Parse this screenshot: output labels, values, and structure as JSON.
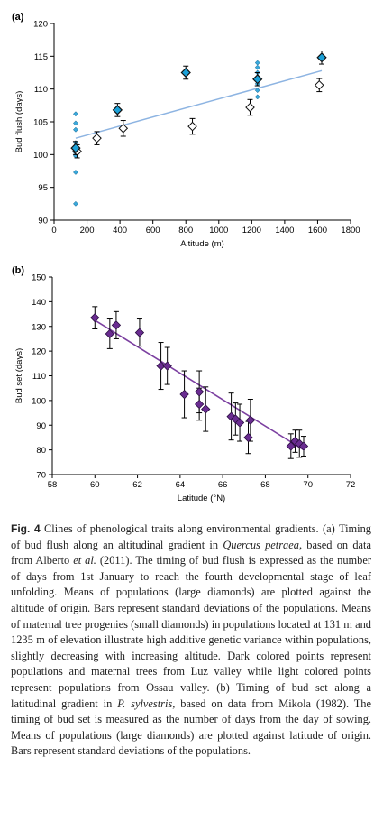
{
  "chart_data": [
    {
      "type": "scatter",
      "panel_label": "(a)",
      "xlabel": "Altitude (m)",
      "ylabel": "Bud flush (days)",
      "xlim": [
        0,
        1800
      ],
      "ylim": [
        90,
        120
      ],
      "xticks": [
        0,
        200,
        400,
        600,
        800,
        1000,
        1200,
        1400,
        1600,
        1800
      ],
      "yticks": [
        90,
        95,
        100,
        105,
        110,
        115,
        120
      ],
      "grid": false,
      "legend": "none",
      "colors": {
        "dark": "#1ba1d8",
        "light": "#ffffff",
        "edge": "#111111",
        "trend": "#8db4e2",
        "small": "#3aa9dc"
      },
      "populations_dark": [
        {
          "x": 131,
          "y": 101.0,
          "sd": 1.0
        },
        {
          "x": 385,
          "y": 106.8,
          "sd": 1.0
        },
        {
          "x": 800,
          "y": 112.5,
          "sd": 1.0
        },
        {
          "x": 1235,
          "y": 111.5,
          "sd": 1.0
        },
        {
          "x": 1625,
          "y": 114.8,
          "sd": 1.0
        }
      ],
      "populations_light": [
        {
          "x": 140,
          "y": 100.5,
          "sd": 1.0
        },
        {
          "x": 260,
          "y": 102.5,
          "sd": 1.0
        },
        {
          "x": 420,
          "y": 104.0,
          "sd": 1.2
        },
        {
          "x": 840,
          "y": 104.3,
          "sd": 1.2
        },
        {
          "x": 1190,
          "y": 107.2,
          "sd": 1.2
        },
        {
          "x": 1610,
          "y": 110.6,
          "sd": 1.0
        }
      ],
      "progenies": [
        {
          "x": 131,
          "y": 92.5
        },
        {
          "x": 131,
          "y": 97.3
        },
        {
          "x": 131,
          "y": 99.8
        },
        {
          "x": 131,
          "y": 100.3
        },
        {
          "x": 131,
          "y": 100.8
        },
        {
          "x": 131,
          "y": 101.8
        },
        {
          "x": 131,
          "y": 103.8
        },
        {
          "x": 131,
          "y": 104.8
        },
        {
          "x": 131,
          "y": 106.2
        },
        {
          "x": 1235,
          "y": 108.8
        },
        {
          "x": 1235,
          "y": 109.8
        },
        {
          "x": 1235,
          "y": 110.8
        },
        {
          "x": 1235,
          "y": 111.8
        },
        {
          "x": 1235,
          "y": 112.5
        },
        {
          "x": 1235,
          "y": 113.3
        },
        {
          "x": 1235,
          "y": 114.0
        }
      ],
      "trendline": {
        "x": [
          131,
          1625
        ],
        "y": [
          102.5,
          112.8
        ]
      }
    },
    {
      "type": "scatter",
      "panel_label": "(b)",
      "xlabel": "Latitude (°N)",
      "ylabel": "Bud set (days)",
      "xlim": [
        58,
        72
      ],
      "ylim": [
        70,
        150
      ],
      "xticks": [
        58,
        60,
        62,
        64,
        66,
        68,
        70,
        72
      ],
      "yticks": [
        70,
        80,
        90,
        100,
        110,
        120,
        130,
        140,
        150
      ],
      "grid": false,
      "legend": "none",
      "colors": {
        "marker": "#6a2c91",
        "trend": "#7b3fa0",
        "edge": "#2a0f40"
      },
      "populations": [
        {
          "x": 60.0,
          "y": 133.5,
          "sd": 4.5
        },
        {
          "x": 60.7,
          "y": 127.0,
          "sd": 6.0
        },
        {
          "x": 61.0,
          "y": 130.5,
          "sd": 5.5
        },
        {
          "x": 62.1,
          "y": 127.5,
          "sd": 5.5
        },
        {
          "x": 63.1,
          "y": 114.0,
          "sd": 9.5
        },
        {
          "x": 63.4,
          "y": 114.0,
          "sd": 7.5
        },
        {
          "x": 64.2,
          "y": 102.5,
          "sd": 9.5
        },
        {
          "x": 64.9,
          "y": 103.5,
          "sd": 8.5
        },
        {
          "x": 64.9,
          "y": 98.5,
          "sd": 6.5
        },
        {
          "x": 65.2,
          "y": 96.5,
          "sd": 9.0
        },
        {
          "x": 66.4,
          "y": 93.5,
          "sd": 9.5
        },
        {
          "x": 66.6,
          "y": 92.5,
          "sd": 6.5
        },
        {
          "x": 66.8,
          "y": 91.0,
          "sd": 7.5
        },
        {
          "x": 67.2,
          "y": 85.0,
          "sd": 6.5
        },
        {
          "x": 67.3,
          "y": 92.0,
          "sd": 8.5
        },
        {
          "x": 69.2,
          "y": 81.5,
          "sd": 5.0
        },
        {
          "x": 69.4,
          "y": 83.5,
          "sd": 4.5
        },
        {
          "x": 69.6,
          "y": 82.5,
          "sd": 5.5
        },
        {
          "x": 69.8,
          "y": 81.5,
          "sd": 4.0
        }
      ],
      "trendline": {
        "x": [
          60.0,
          69.8
        ],
        "y": [
          132.5,
          80.0
        ]
      }
    }
  ],
  "caption": {
    "fig_label": "Fig. 4",
    "t1": " Clines of phenological traits along environmental gradients. (a) Timing of bud flush along an altitudinal gradient in ",
    "species_a": "Quercus petraea",
    "t2": ", based on data from Alberto ",
    "et_al": "et al.",
    "t3": " (2011). The timing of bud flush is expressed as the number of days from 1st January to reach the fourth developmental stage of leaf unfolding. Means of populations (large diamonds) are plotted against the altitude of origin. Bars represent standard deviations of the populations. Means of maternal tree progenies (small diamonds) in populations located at 131 m and 1235 m of elevation illustrate high additive genetic variance within populations, slightly decreasing with increasing altitude. Dark colored points represent populations and maternal trees from Luz valley while light colored points represent populations from Ossau valley. (b) Timing of bud set along a latitudinal gradient in ",
    "species_b": "P. sylvestris",
    "t4": ", based on data from Mikola (1982). The timing of bud set is measured as the number of days from the day of sowing. Means of populations (large diamonds) are plotted against latitude of origin. Bars represent standard deviations of the populations."
  }
}
